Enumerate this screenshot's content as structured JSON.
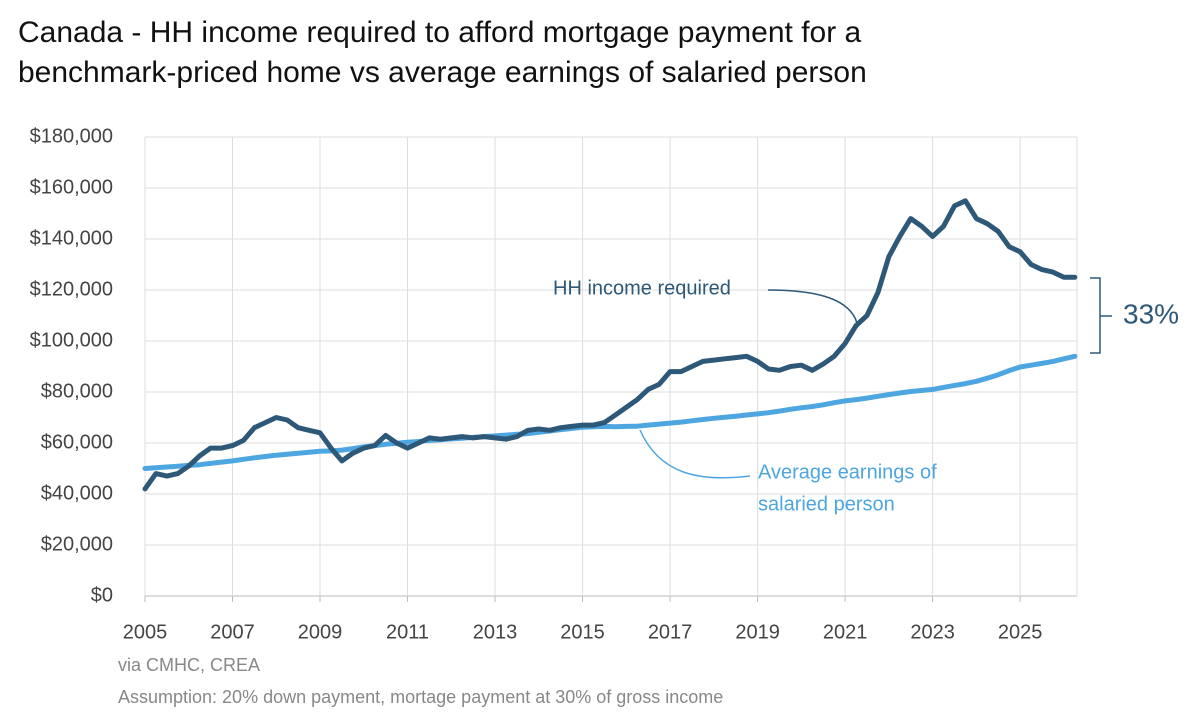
{
  "chart_data": {
    "type": "line",
    "title": [
      "Canada - HH income required to afford mortgage payment for a",
      "benchmark-priced home vs average earnings of salaried person"
    ],
    "x": [
      2005,
      2005.25,
      2005.5,
      2005.75,
      2006,
      2006.25,
      2006.5,
      2006.75,
      2007,
      2007.25,
      2007.5,
      2007.75,
      2008,
      2008.25,
      2008.5,
      2008.75,
      2009,
      2009.25,
      2009.5,
      2009.75,
      2010,
      2010.25,
      2010.5,
      2010.75,
      2011,
      2011.25,
      2011.5,
      2011.75,
      2012,
      2012.25,
      2012.5,
      2012.75,
      2013,
      2013.25,
      2013.5,
      2013.75,
      2014,
      2014.25,
      2014.5,
      2014.75,
      2015,
      2015.25,
      2015.5,
      2015.75,
      2016,
      2016.25,
      2016.5,
      2016.75,
      2017,
      2017.25,
      2017.5,
      2017.75,
      2018,
      2018.25,
      2018.5,
      2018.75,
      2019,
      2019.25,
      2019.5,
      2019.75,
      2020,
      2020.25,
      2020.5,
      2020.75,
      2021,
      2021.25,
      2021.5,
      2021.75,
      2022,
      2022.25,
      2022.5,
      2022.75,
      2023,
      2023.25,
      2023.5,
      2023.75,
      2024,
      2024.25,
      2024.5,
      2024.75,
      2025,
      2025.25,
      2025.5,
      2025.75,
      2026,
      2026.25
    ],
    "series": [
      {
        "name": "HH income required",
        "color": "#2d5878",
        "values": [
          42000,
          48000,
          47000,
          48000,
          51000,
          55000,
          58000,
          58000,
          59000,
          61000,
          66000,
          68000,
          70000,
          69000,
          66000,
          65000,
          64000,
          58000,
          53000,
          56000,
          58000,
          59000,
          63000,
          60000,
          58000,
          60000,
          62000,
          61500,
          62000,
          62500,
          62000,
          62500,
          62000,
          61500,
          62500,
          65000,
          65500,
          65000,
          66000,
          66500,
          67000,
          67000,
          68000,
          71000,
          74000,
          77000,
          81000,
          83000,
          88000,
          88000,
          90000,
          92000,
          92500,
          93000,
          93500,
          94000,
          92000,
          89000,
          88500,
          90000,
          90500,
          88500,
          91000,
          94000,
          99000,
          106000,
          110000,
          119000,
          133000,
          141000,
          148000,
          145000,
          141000,
          145000,
          153000,
          155000,
          148000,
          146000,
          143000,
          137000,
          135000,
          130000,
          128000,
          127000,
          125000,
          125000
        ]
      },
      {
        "name": "Average earnings of salaried person",
        "label_lines": [
          "Average earnings of",
          "salaried person"
        ],
        "color": "#4ea6e0",
        "values": [
          50000,
          50300,
          50600,
          50900,
          51200,
          51500,
          52000,
          52500,
          53000,
          53600,
          54200,
          54700,
          55200,
          55600,
          56000,
          56400,
          56800,
          56900,
          57200,
          57800,
          58500,
          59000,
          59500,
          59900,
          60300,
          60600,
          61000,
          61300,
          61600,
          61900,
          62200,
          62500,
          62800,
          63100,
          63400,
          63700,
          64200,
          64700,
          65200,
          65700,
          66200,
          66400,
          66500,
          66400,
          66500,
          66600,
          67000,
          67400,
          67800,
          68200,
          68700,
          69200,
          69700,
          70100,
          70500,
          71000,
          71400,
          71900,
          72500,
          73200,
          73800,
          74300,
          75000,
          75800,
          76500,
          77000,
          77600,
          78300,
          79000,
          79600,
          80200,
          80600,
          81000,
          81800,
          82600,
          83300,
          84200,
          85400,
          86800,
          88400,
          89800,
          90500,
          91200,
          92000,
          93000,
          94000
        ]
      }
    ],
    "gap_annotation": "33%",
    "xlim": [
      2005,
      2026.3
    ],
    "xticks": [
      2005,
      2007,
      2009,
      2011,
      2013,
      2015,
      2017,
      2019,
      2021,
      2023,
      2025
    ],
    "ylim": [
      0,
      180000
    ],
    "yticks": [
      {
        "value": 0,
        "label": "$0"
      },
      {
        "value": 20000,
        "label": "$20,000"
      },
      {
        "value": 40000,
        "label": "$40,000"
      },
      {
        "value": 60000,
        "label": "$60,000"
      },
      {
        "value": 80000,
        "label": "$80,000"
      },
      {
        "value": 100000,
        "label": "$100,000"
      },
      {
        "value": 120000,
        "label": "$120,000"
      },
      {
        "value": 140000,
        "label": "$140,000"
      },
      {
        "value": 160000,
        "label": "$160,000"
      },
      {
        "value": 180000,
        "label": "$180,000"
      }
    ],
    "grid": true,
    "source": "via CMHC, CREA",
    "note": "Assumption: 20% down payment, mortage payment at 30% of gross income"
  }
}
